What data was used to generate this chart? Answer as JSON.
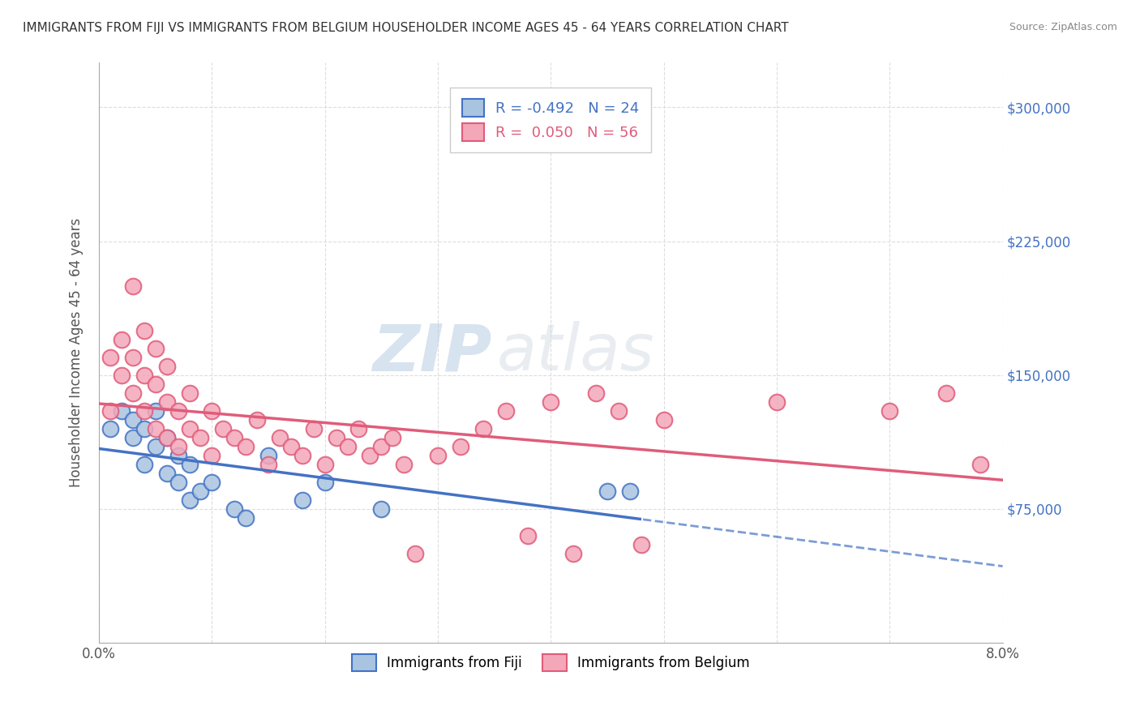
{
  "title": "IMMIGRANTS FROM FIJI VS IMMIGRANTS FROM BELGIUM HOUSEHOLDER INCOME AGES 45 - 64 YEARS CORRELATION CHART",
  "source": "Source: ZipAtlas.com",
  "ylabel": "Householder Income Ages 45 - 64 years",
  "xlim": [
    0.0,
    0.08
  ],
  "ylim": [
    0,
    325000
  ],
  "xticks": [
    0.0,
    0.01,
    0.02,
    0.03,
    0.04,
    0.05,
    0.06,
    0.07,
    0.08
  ],
  "xticklabels": [
    "0.0%",
    "",
    "",
    "",
    "",
    "",
    "",
    "",
    "8.0%"
  ],
  "yticks": [
    0,
    75000,
    150000,
    225000,
    300000
  ],
  "yticklabels": [
    "",
    "$75,000",
    "$150,000",
    "$225,000",
    "$300,000"
  ],
  "fiji_color": "#a8c4e0",
  "fiji_line_color": "#4472c4",
  "belgium_color": "#f4a7b9",
  "belgium_line_color": "#e05c7a",
  "fiji_R": -0.492,
  "fiji_N": 24,
  "belgium_R": 0.05,
  "belgium_N": 56,
  "watermark_zip": "ZIP",
  "watermark_atlas": "atlas",
  "background_color": "#ffffff",
  "grid_color": "#dddddd",
  "fiji_scatter_x": [
    0.001,
    0.002,
    0.003,
    0.003,
    0.004,
    0.004,
    0.005,
    0.005,
    0.006,
    0.006,
    0.007,
    0.007,
    0.008,
    0.008,
    0.009,
    0.01,
    0.012,
    0.013,
    0.015,
    0.018,
    0.02,
    0.025,
    0.045,
    0.047
  ],
  "fiji_scatter_y": [
    120000,
    130000,
    115000,
    125000,
    100000,
    120000,
    110000,
    130000,
    95000,
    115000,
    90000,
    105000,
    80000,
    100000,
    85000,
    90000,
    75000,
    70000,
    105000,
    80000,
    90000,
    75000,
    85000,
    85000
  ],
  "belgium_scatter_x": [
    0.001,
    0.001,
    0.002,
    0.002,
    0.003,
    0.003,
    0.003,
    0.004,
    0.004,
    0.004,
    0.005,
    0.005,
    0.005,
    0.006,
    0.006,
    0.006,
    0.007,
    0.007,
    0.008,
    0.008,
    0.009,
    0.01,
    0.01,
    0.011,
    0.012,
    0.013,
    0.014,
    0.015,
    0.016,
    0.017,
    0.018,
    0.019,
    0.02,
    0.021,
    0.022,
    0.023,
    0.024,
    0.025,
    0.026,
    0.027,
    0.028,
    0.03,
    0.032,
    0.034,
    0.036,
    0.038,
    0.04,
    0.042,
    0.044,
    0.046,
    0.048,
    0.05,
    0.06,
    0.07,
    0.075,
    0.078
  ],
  "belgium_scatter_y": [
    130000,
    160000,
    150000,
    170000,
    140000,
    160000,
    200000,
    130000,
    150000,
    175000,
    120000,
    145000,
    165000,
    115000,
    135000,
    155000,
    110000,
    130000,
    120000,
    140000,
    115000,
    105000,
    130000,
    120000,
    115000,
    110000,
    125000,
    100000,
    115000,
    110000,
    105000,
    120000,
    100000,
    115000,
    110000,
    120000,
    105000,
    110000,
    115000,
    100000,
    50000,
    105000,
    110000,
    120000,
    130000,
    60000,
    135000,
    50000,
    140000,
    130000,
    55000,
    125000,
    135000,
    130000,
    140000,
    100000
  ],
  "fiji_dashed_from": 0.048
}
